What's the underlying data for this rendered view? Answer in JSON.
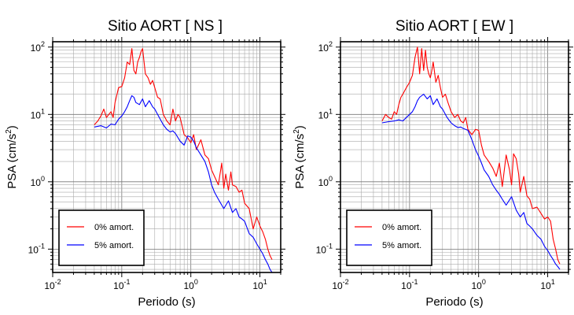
{
  "chart_data": [
    {
      "type": "line",
      "title": "Sitio AORT [ NS ]",
      "xlabel": "Periodo (s)",
      "ylabel": "PSA (cm/s²)",
      "xscale": "log",
      "yscale": "log",
      "xlim": [
        0.01,
        20
      ],
      "ylim": [
        0.045,
        120
      ],
      "grid": true,
      "legend_position": "bottom-left",
      "x_ticks": [
        {
          "v": 0.01,
          "base": "10",
          "exp": "-2"
        },
        {
          "v": 0.1,
          "base": "10",
          "exp": "-1"
        },
        {
          "v": 1,
          "base": "10",
          "exp": "0"
        },
        {
          "v": 10,
          "base": "10",
          "exp": "1"
        }
      ],
      "y_ticks": [
        {
          "v": 0.1,
          "base": "10",
          "exp": "-1"
        },
        {
          "v": 1,
          "base": "10",
          "exp": "0"
        },
        {
          "v": 10,
          "base": "10",
          "exp": "1"
        },
        {
          "v": 100,
          "base": "10",
          "exp": "2"
        }
      ],
      "series": [
        {
          "name": "0% amort.",
          "color": "#ff0000",
          "x": [
            0.04,
            0.045,
            0.05,
            0.055,
            0.06,
            0.065,
            0.07,
            0.075,
            0.08,
            0.09,
            0.1,
            0.11,
            0.12,
            0.13,
            0.14,
            0.15,
            0.16,
            0.17,
            0.18,
            0.19,
            0.2,
            0.21,
            0.22,
            0.24,
            0.26,
            0.28,
            0.3,
            0.33,
            0.36,
            0.4,
            0.45,
            0.5,
            0.55,
            0.6,
            0.65,
            0.7,
            0.8,
            0.9,
            1.0,
            1.1,
            1.2,
            1.4,
            1.6,
            1.8,
            2.0,
            2.2,
            2.5,
            2.8,
            3.0,
            3.2,
            3.5,
            3.8,
            4.0,
            4.5,
            5.0,
            5.5,
            6.0,
            7.0,
            8.0,
            9.0,
            10,
            11,
            12,
            13,
            14,
            15
          ],
          "y": [
            7,
            8,
            9.5,
            12,
            9,
            10,
            11,
            9,
            15,
            25,
            26,
            35,
            60,
            55,
            95,
            45,
            40,
            60,
            70,
            85,
            95,
            60,
            40,
            35,
            28,
            32,
            25,
            18,
            17,
            10,
            8,
            7,
            12,
            8,
            10,
            9,
            5,
            4.5,
            3.8,
            5,
            3,
            4.2,
            2.5,
            2.2,
            1.5,
            1.2,
            0.9,
            1.9,
            0.8,
            1.3,
            0.75,
            1.4,
            0.9,
            0.85,
            0.7,
            0.75,
            0.48,
            0.4,
            0.2,
            0.3,
            0.22,
            0.18,
            0.14,
            0.1,
            0.08,
            0.07
          ]
        },
        {
          "name": "5% amort.",
          "color": "#0000ff",
          "x": [
            0.04,
            0.05,
            0.06,
            0.07,
            0.08,
            0.09,
            0.1,
            0.11,
            0.12,
            0.13,
            0.14,
            0.15,
            0.16,
            0.18,
            0.2,
            0.22,
            0.25,
            0.28,
            0.3,
            0.35,
            0.4,
            0.45,
            0.5,
            0.55,
            0.6,
            0.7,
            0.8,
            0.9,
            1.0,
            1.1,
            1.2,
            1.4,
            1.6,
            1.8,
            2.0,
            2.2,
            2.5,
            3.0,
            3.5,
            4.0,
            4.5,
            5.0,
            5.5,
            6.0,
            7.0,
            8.0,
            9.0,
            10,
            11,
            12,
            13,
            14,
            15
          ],
          "y": [
            6.5,
            6.8,
            6.3,
            7.2,
            7,
            8.5,
            9.5,
            11,
            13,
            16,
            19,
            18,
            15,
            14,
            17,
            13,
            16,
            13,
            12,
            9,
            7,
            6,
            5.5,
            5.7,
            5.2,
            4,
            3.5,
            4.8,
            4.6,
            4,
            3.2,
            2.5,
            2,
            1.4,
            0.9,
            0.7,
            0.55,
            0.4,
            0.52,
            0.35,
            0.4,
            0.3,
            0.28,
            0.26,
            0.17,
            0.15,
            0.12,
            0.1,
            0.085,
            0.07,
            0.06,
            0.05,
            0.045
          ]
        }
      ]
    },
    {
      "type": "line",
      "title": "Sitio AORT [ EW ]",
      "xlabel": "Periodo (s)",
      "ylabel": "PSA (cm/s²)",
      "xscale": "log",
      "yscale": "log",
      "xlim": [
        0.01,
        20
      ],
      "ylim": [
        0.045,
        120
      ],
      "grid": true,
      "legend_position": "bottom-left",
      "x_ticks": [
        {
          "v": 0.01,
          "base": "10",
          "exp": "-2"
        },
        {
          "v": 0.1,
          "base": "10",
          "exp": "-1"
        },
        {
          "v": 1,
          "base": "10",
          "exp": "0"
        },
        {
          "v": 10,
          "base": "10",
          "exp": "1"
        }
      ],
      "y_ticks": [
        {
          "v": 0.1,
          "base": "10",
          "exp": "-1"
        },
        {
          "v": 1,
          "base": "10",
          "exp": "0"
        },
        {
          "v": 10,
          "base": "10",
          "exp": "1"
        },
        {
          "v": 100,
          "base": "10",
          "exp": "2"
        }
      ],
      "series": [
        {
          "name": "0% amort.",
          "color": "#ff0000",
          "x": [
            0.04,
            0.045,
            0.05,
            0.055,
            0.06,
            0.065,
            0.07,
            0.075,
            0.08,
            0.09,
            0.1,
            0.11,
            0.12,
            0.13,
            0.14,
            0.15,
            0.16,
            0.17,
            0.18,
            0.19,
            0.2,
            0.21,
            0.22,
            0.24,
            0.26,
            0.28,
            0.3,
            0.33,
            0.36,
            0.4,
            0.45,
            0.5,
            0.55,
            0.6,
            0.65,
            0.7,
            0.8,
            0.9,
            1.0,
            1.1,
            1.2,
            1.4,
            1.6,
            1.8,
            2.0,
            2.2,
            2.5,
            2.8,
            3.0,
            3.2,
            3.5,
            3.8,
            4.0,
            4.5,
            5.0,
            5.5,
            6.0,
            7.0,
            8.0,
            9.0,
            10,
            11,
            12,
            13,
            14,
            15
          ],
          "y": [
            8,
            10,
            9,
            8.5,
            11,
            10,
            14,
            18,
            20,
            25,
            30,
            38,
            70,
            100,
            40,
            95,
            45,
            90,
            50,
            40,
            35,
            45,
            60,
            30,
            38,
            25,
            18,
            20,
            15,
            11,
            9,
            10,
            8,
            7.5,
            9,
            6,
            5,
            6,
            5.8,
            3.5,
            2.5,
            2,
            1.6,
            1.2,
            1.9,
            0.85,
            2.5,
            1.5,
            0.9,
            2.6,
            2.2,
            1.3,
            0.7,
            1.2,
            0.62,
            0.55,
            0.4,
            0.42,
            0.34,
            0.28,
            0.3,
            0.26,
            0.14,
            0.1,
            0.07,
            0.06
          ]
        },
        {
          "name": "5% amort.",
          "color": "#0000ff",
          "x": [
            0.04,
            0.05,
            0.06,
            0.07,
            0.08,
            0.09,
            0.1,
            0.11,
            0.12,
            0.13,
            0.14,
            0.15,
            0.16,
            0.18,
            0.2,
            0.22,
            0.25,
            0.28,
            0.3,
            0.35,
            0.4,
            0.45,
            0.5,
            0.55,
            0.6,
            0.7,
            0.8,
            0.9,
            1.0,
            1.1,
            1.2,
            1.4,
            1.6,
            1.8,
            2.0,
            2.2,
            2.5,
            3.0,
            3.5,
            4.0,
            4.5,
            5.0,
            5.5,
            6.0,
            7.0,
            8.0,
            9.0,
            10,
            11,
            12,
            13,
            14,
            15
          ],
          "y": [
            7.5,
            7.8,
            8,
            8.3,
            8,
            9,
            10,
            11,
            13,
            16,
            18,
            19,
            20,
            17,
            19,
            14,
            17,
            13,
            12,
            9,
            7.5,
            6.8,
            6.4,
            6.5,
            6.2,
            5.8,
            4.2,
            3,
            2.4,
            1.9,
            1.5,
            1.2,
            0.9,
            0.75,
            0.65,
            0.55,
            0.45,
            0.6,
            0.38,
            0.3,
            0.35,
            0.24,
            0.22,
            0.2,
            0.16,
            0.14,
            0.11,
            0.095,
            0.08,
            0.07,
            0.06,
            0.055,
            0.05
          ]
        }
      ]
    }
  ]
}
